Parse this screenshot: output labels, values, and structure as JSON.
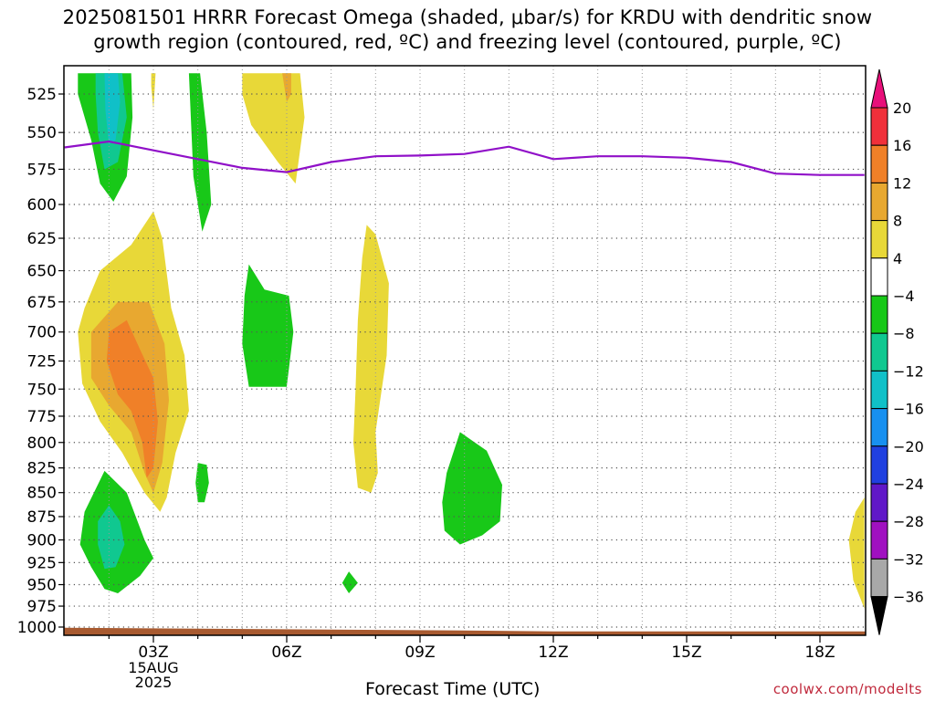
{
  "title_lines": [
    "2025081501 HRRR Forecast Omega (shaded, μbar/s) for KRDU with dendritic snow",
    "growth region (contoured, red, ºC) and freezing level (contoured, purple, ºC)"
  ],
  "xlabel": "Forecast Time (UTC)",
  "credit": "coolwx.com/modelts",
  "chart_data": {
    "type": "heatmap",
    "title": "2025081501 HRRR Forecast Omega (shaded, μbar/s) for KRDU with dendritic snow growth region (contoured, red, ºC) and freezing level (contoured, purple, ºC)",
    "xlabel": "Forecast Time (UTC)",
    "ylabel": "",
    "y_scale": "log-pressure (hPa), inverted",
    "y_ticks": [
      525,
      550,
      575,
      600,
      625,
      650,
      675,
      700,
      725,
      750,
      775,
      800,
      825,
      850,
      875,
      900,
      925,
      950,
      975,
      1000
    ],
    "x_range_hours": [
      1,
      19
    ],
    "x_ticks": [
      {
        "hour": 3,
        "label": "03Z",
        "sub": [
          "15AUG",
          "2025"
        ]
      },
      {
        "hour": 6,
        "label": "06Z"
      },
      {
        "hour": 9,
        "label": "09Z"
      },
      {
        "hour": 12,
        "label": "12Z"
      },
      {
        "hour": 15,
        "label": "15Z"
      },
      {
        "hour": 18,
        "label": "18Z"
      }
    ],
    "grid": true,
    "colorbar": {
      "labels": [
        "20",
        "16",
        "12",
        "8",
        "4",
        "−4",
        "−8",
        "−12",
        "−16",
        "−20",
        "−24",
        "−28",
        "−32",
        "−36"
      ],
      "bands": [
        {
          "range": "16 to 20",
          "color": "#f0303a"
        },
        {
          "range": "12 to 16",
          "color": "#f08028"
        },
        {
          "range": "8 to 12",
          "color": "#e8a830"
        },
        {
          "range": "4 to 8",
          "color": "#e8d838"
        },
        {
          "range": "-4 to 4",
          "color": "#ffffff"
        },
        {
          "range": "-8 to -4",
          "color": "#18c818"
        },
        {
          "range": "-12 to -8",
          "color": "#10c890"
        },
        {
          "range": "-16 to -12",
          "color": "#10c0c8"
        },
        {
          "range": "-20 to -16",
          "color": "#1890f0"
        },
        {
          "range": "-24 to -20",
          "color": "#2040e0"
        },
        {
          "range": "-28 to -24",
          "color": "#6018c8"
        },
        {
          "range": "-32 to -28",
          "color": "#a010c0"
        },
        {
          "range": "-36 to -32",
          "color": "#a8a8a8"
        }
      ],
      "over_color": "#e8107a",
      "under_color": "#000000"
    },
    "freezing_level": {
      "color": "#9010c8",
      "hours": [
        1,
        2,
        3,
        4,
        5,
        6,
        7,
        8,
        9,
        10,
        11,
        12,
        13,
        14,
        15,
        16,
        17,
        18,
        19
      ],
      "pressure": [
        560,
        556,
        562,
        568,
        574,
        577,
        570,
        566,
        565.5,
        564.5,
        559.5,
        568,
        566,
        566,
        567,
        570,
        578,
        579,
        579
      ]
    },
    "terrain": {
      "color": "#a85a30",
      "top_hPa": 1003
    },
    "shaded_regions": [
      {
        "value_band": "-8 to -4",
        "color": "#18c818",
        "points": [
          [
            1.3,
            512
          ],
          [
            2.5,
            512
          ],
          [
            2.53,
            540
          ],
          [
            2.4,
            580
          ],
          [
            2.1,
            598
          ],
          [
            1.8,
            585
          ],
          [
            1.6,
            555
          ],
          [
            1.3,
            525
          ]
        ]
      },
      {
        "value_band": "-12 to -8",
        "color": "#10c890",
        "points": [
          [
            1.7,
            512
          ],
          [
            2.3,
            512
          ],
          [
            2.4,
            540
          ],
          [
            2.2,
            570
          ],
          [
            1.9,
            575
          ],
          [
            1.75,
            550
          ],
          [
            1.7,
            525
          ]
        ]
      },
      {
        "value_band": "-16 to -12",
        "color": "#10c0c8",
        "points": [
          [
            1.9,
            512
          ],
          [
            2.2,
            512
          ],
          [
            2.25,
            530
          ],
          [
            2.15,
            555
          ],
          [
            2.0,
            558
          ],
          [
            1.92,
            535
          ]
        ]
      },
      {
        "value_band": "4 to 8",
        "color": "#e8d838",
        "points": [
          [
            2.95,
            512
          ],
          [
            3.05,
            512
          ],
          [
            3.0,
            535
          ],
          [
            2.95,
            520
          ]
        ]
      },
      {
        "value_band": "-8 to -4",
        "color": "#18c818",
        "points": [
          [
            3.8,
            512
          ],
          [
            4.05,
            512
          ],
          [
            4.2,
            550
          ],
          [
            4.3,
            600
          ],
          [
            4.1,
            620
          ],
          [
            3.9,
            580
          ]
        ]
      },
      {
        "value_band": "4 to 8",
        "color": "#e8d838",
        "points": [
          [
            5.0,
            512
          ],
          [
            6.3,
            512
          ],
          [
            6.4,
            540
          ],
          [
            6.2,
            585
          ],
          [
            5.8,
            570
          ],
          [
            5.2,
            545
          ],
          [
            5.0,
            525
          ]
        ]
      },
      {
        "value_band": "8 to 12",
        "color": "#e8a830",
        "points": [
          [
            5.9,
            512
          ],
          [
            6.1,
            512
          ],
          [
            6.1,
            525
          ],
          [
            6.0,
            530
          ]
        ]
      },
      {
        "value_band": "4 to 8",
        "color": "#e8d838",
        "points": [
          [
            1.45,
            680
          ],
          [
            1.8,
            650
          ],
          [
            2.5,
            630
          ],
          [
            3.0,
            605
          ],
          [
            3.2,
            625
          ],
          [
            3.4,
            680
          ],
          [
            3.7,
            720
          ],
          [
            3.8,
            770
          ],
          [
            3.5,
            810
          ],
          [
            3.3,
            855
          ],
          [
            3.15,
            870
          ],
          [
            2.8,
            850
          ],
          [
            2.3,
            810
          ],
          [
            1.8,
            780
          ],
          [
            1.4,
            745
          ],
          [
            1.3,
            700
          ]
        ]
      },
      {
        "value_band": "8 to 12",
        "color": "#e8a830",
        "points": [
          [
            1.6,
            700
          ],
          [
            2.2,
            675
          ],
          [
            2.9,
            675
          ],
          [
            3.25,
            710
          ],
          [
            3.35,
            760
          ],
          [
            3.2,
            820
          ],
          [
            3.0,
            850
          ],
          [
            2.8,
            830
          ],
          [
            2.5,
            790
          ],
          [
            2.0,
            765
          ],
          [
            1.6,
            740
          ]
        ]
      },
      {
        "value_band": "12 to 16",
        "color": "#f08028",
        "points": [
          [
            2.0,
            700
          ],
          [
            2.4,
            690
          ],
          [
            2.7,
            715
          ],
          [
            3.0,
            740
          ],
          [
            3.1,
            780
          ],
          [
            3.0,
            825
          ],
          [
            2.85,
            835
          ],
          [
            2.75,
            800
          ],
          [
            2.5,
            770
          ],
          [
            2.2,
            755
          ],
          [
            1.95,
            725
          ]
        ]
      },
      {
        "value_band": "-8 to -4",
        "color": "#18c818",
        "points": [
          [
            4.0,
            820
          ],
          [
            4.2,
            822
          ],
          [
            4.25,
            840
          ],
          [
            4.15,
            860
          ],
          [
            4.0,
            860
          ],
          [
            3.95,
            840
          ]
        ]
      },
      {
        "value_band": "-8 to -4",
        "color": "#18c818",
        "points": [
          [
            5.15,
            645
          ],
          [
            5.5,
            665
          ],
          [
            6.05,
            670
          ],
          [
            6.15,
            700
          ],
          [
            6.0,
            748
          ],
          [
            5.15,
            748
          ],
          [
            5.0,
            710
          ],
          [
            5.05,
            670
          ]
        ]
      },
      {
        "value_band": "4 to 8",
        "color": "#e8d838",
        "points": [
          [
            7.8,
            615
          ],
          [
            8.0,
            622
          ],
          [
            8.3,
            660
          ],
          [
            8.25,
            720
          ],
          [
            8.0,
            790
          ],
          [
            8.05,
            830
          ],
          [
            7.9,
            850
          ],
          [
            7.6,
            845
          ],
          [
            7.5,
            800
          ],
          [
            7.55,
            750
          ],
          [
            7.6,
            690
          ],
          [
            7.7,
            640
          ]
        ]
      },
      {
        "value_band": "-8 to -4",
        "color": "#18c818",
        "points": [
          [
            1.45,
            870
          ],
          [
            1.9,
            828
          ],
          [
            2.4,
            850
          ],
          [
            2.8,
            900
          ],
          [
            3.0,
            920
          ],
          [
            2.7,
            940
          ],
          [
            2.2,
            960
          ],
          [
            1.9,
            955
          ],
          [
            1.6,
            930
          ],
          [
            1.35,
            905
          ]
        ]
      },
      {
        "value_band": "-12 to -8",
        "color": "#10c890",
        "points": [
          [
            1.75,
            880
          ],
          [
            2.0,
            863
          ],
          [
            2.25,
            880
          ],
          [
            2.35,
            905
          ],
          [
            2.15,
            930
          ],
          [
            1.9,
            932
          ],
          [
            1.75,
            905
          ]
        ]
      },
      {
        "value_band": "-8 to -4",
        "color": "#18c818",
        "points": [
          [
            7.4,
            935
          ],
          [
            7.6,
            948
          ],
          [
            7.4,
            960
          ],
          [
            7.25,
            948
          ]
        ]
      },
      {
        "value_band": "-8 to -4",
        "color": "#18c818",
        "points": [
          [
            9.9,
            790
          ],
          [
            10.5,
            808
          ],
          [
            10.85,
            842
          ],
          [
            10.8,
            880
          ],
          [
            10.4,
            895
          ],
          [
            9.9,
            905
          ],
          [
            9.55,
            890
          ],
          [
            9.5,
            860
          ],
          [
            9.6,
            830
          ]
        ]
      },
      {
        "value_band": "4 to 8",
        "color": "#e8d838",
        "points": [
          [
            19.0,
            855
          ],
          [
            19.0,
            978
          ],
          [
            18.75,
            945
          ],
          [
            18.65,
            900
          ],
          [
            18.8,
            870
          ]
        ]
      }
    ]
  }
}
